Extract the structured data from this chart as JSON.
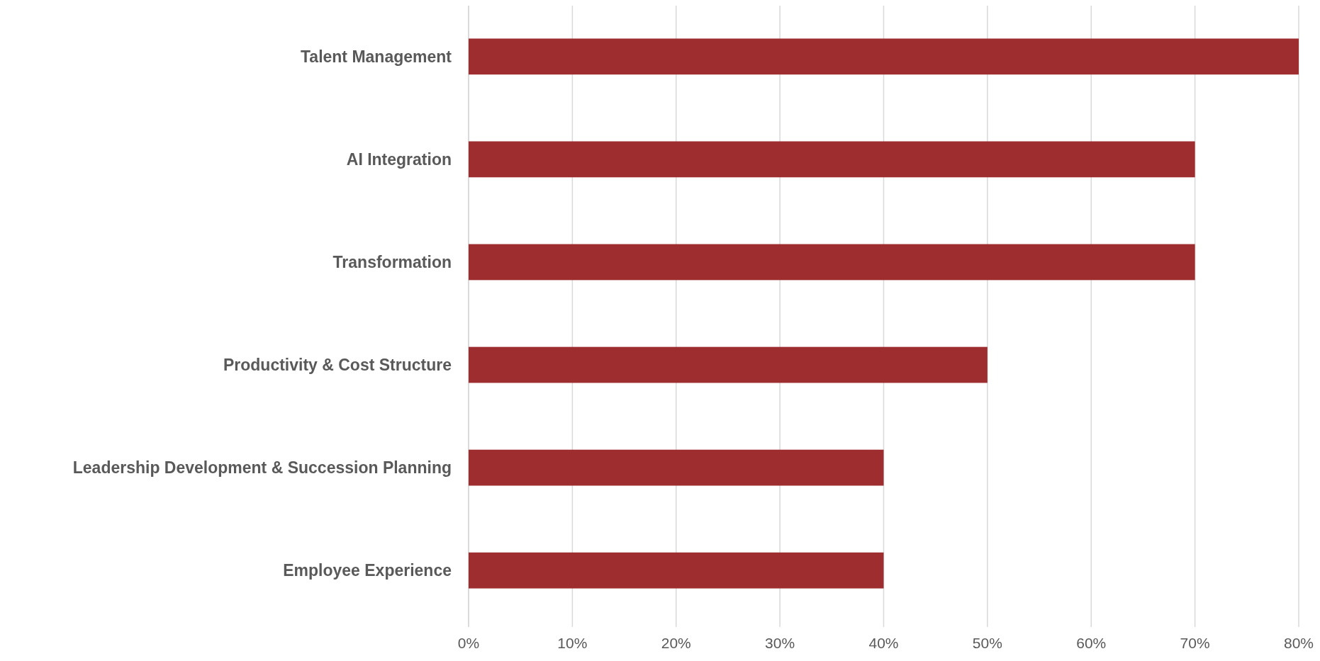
{
  "chart_data": {
    "type": "bar",
    "orientation": "horizontal",
    "categories": [
      "Talent Management",
      "AI Integration",
      "Transformation",
      "Productivity & Cost Structure",
      "Leadership Development & Succession Planning",
      "Employee Experience"
    ],
    "values": [
      80,
      70,
      70,
      50,
      40,
      40
    ],
    "color": "#9e2d30",
    "xlim": [
      0,
      80
    ],
    "xticks": [
      {
        "value": 0,
        "label": "0%"
      },
      {
        "value": 10,
        "label": "10%"
      },
      {
        "value": 20,
        "label": "20%"
      },
      {
        "value": 30,
        "label": "30%"
      },
      {
        "value": 40,
        "label": "40%"
      },
      {
        "value": 50,
        "label": "50%"
      },
      {
        "value": 60,
        "label": "60%"
      },
      {
        "value": 70,
        "label": "70%"
      },
      {
        "value": 80,
        "label": "80%"
      }
    ],
    "grid": "x"
  }
}
